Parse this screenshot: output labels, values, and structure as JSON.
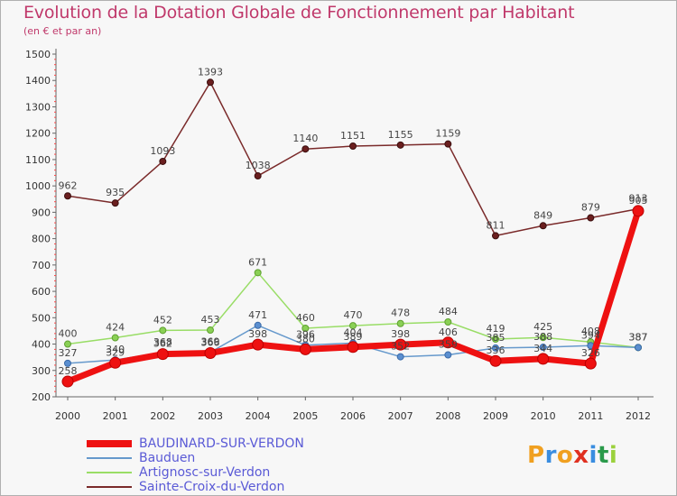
{
  "title": "Evolution de la Dotation Globale de Fonctionnement par Habitant",
  "subtitle": "(en € et par an)",
  "brand": {
    "text": "Proxiti",
    "letters": [
      "P",
      "r",
      "o",
      "x",
      "i",
      "t",
      "i"
    ],
    "colors": [
      "#f0a020",
      "#3a8de0",
      "#f0a020",
      "#e03020",
      "#3a8de0",
      "#2a9a4a",
      "#9bd13c"
    ]
  },
  "chart_data": {
    "type": "line",
    "x": [
      "2000",
      "2001",
      "2002",
      "2003",
      "2004",
      "2005",
      "2006",
      "2007",
      "2008",
      "2009",
      "2010",
      "2011",
      "2012"
    ],
    "ylim": [
      200,
      1500
    ],
    "yticks": [
      "200",
      "300",
      "400",
      "500",
      "600",
      "700",
      "800",
      "900",
      "1000",
      "1100",
      "1200",
      "1300",
      "1400",
      "1500"
    ],
    "grid": false,
    "series": [
      {
        "name": "BAUDINARD-SUR-VERDON",
        "color": "#ee1111",
        "values": [
          258,
          329,
          362,
          366,
          398,
          380,
          389,
          398,
          406,
          336,
          344,
          326,
          905
        ],
        "labels": [
          "258",
          "329",
          "362",
          "366",
          "398",
          "380",
          "389",
          "398",
          "406",
          "336",
          "344",
          "326",
          "905"
        ]
      },
      {
        "name": "Bauduen",
        "color": "#6699cc",
        "values": [
          327,
          340,
          368,
          369,
          471,
          396,
          404,
          352,
          359,
          385,
          388,
          394,
          387
        ],
        "labels": [
          "327",
          "340",
          "368",
          "369",
          "471",
          "396",
          "404",
          "352",
          "359",
          "385",
          "388",
          "394",
          "387"
        ]
      },
      {
        "name": "Artignosc-sur-Verdon",
        "color": "#99dd66",
        "values": [
          400,
          424,
          452,
          453,
          671,
          460,
          470,
          478,
          484,
          419,
          425,
          408,
          387
        ],
        "labels": [
          "400",
          "424",
          "452",
          "453",
          "671",
          "460",
          "470",
          "478",
          "484",
          "419",
          "425",
          "408",
          "387"
        ]
      },
      {
        "name": "Sainte-Croix-du-Verdon",
        "color": "#7a2a2a",
        "values": [
          962,
          935,
          1093,
          1393,
          1038,
          1140,
          1151,
          1155,
          1159,
          811,
          849,
          879,
          913
        ],
        "labels": [
          "962",
          "935",
          "1093",
          "1393",
          "1038",
          "1140",
          "1151",
          "1155",
          "1159",
          "811",
          "849",
          "879",
          "913"
        ]
      }
    ]
  }
}
